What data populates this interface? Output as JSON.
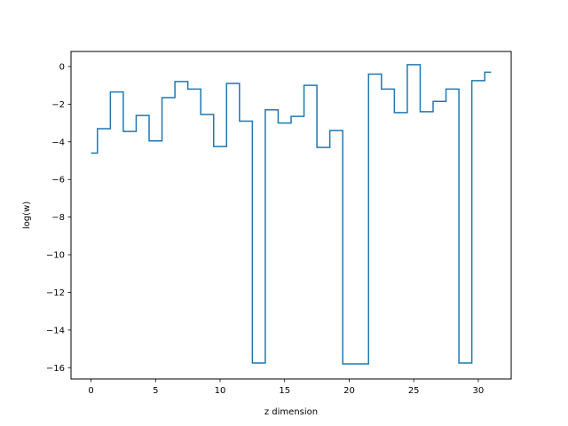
{
  "chart_data": {
    "type": "line",
    "drawstyle": "steps-mid",
    "title": "",
    "xlabel": "z dimension",
    "ylabel": "log(w)",
    "xlim": [
      -1.55,
      32.55
    ],
    "ylim": [
      -16.6,
      0.8
    ],
    "xticks": [
      0,
      5,
      10,
      15,
      20,
      25,
      30
    ],
    "yticks": [
      0,
      -2,
      -4,
      -6,
      -8,
      -10,
      -12,
      -14,
      -16
    ],
    "grid": false,
    "series": [
      {
        "color": "#1f77b4",
        "x": [
          0,
          1,
          2,
          3,
          4,
          5,
          6,
          7,
          8,
          9,
          10,
          11,
          12,
          13,
          14,
          15,
          16,
          17,
          18,
          19,
          20,
          21,
          22,
          23,
          24,
          25,
          26,
          27,
          28,
          29,
          30,
          31
        ],
        "y": [
          -4.6,
          -3.3,
          -1.35,
          -3.45,
          -2.6,
          -3.95,
          -1.65,
          -0.8,
          -1.2,
          -2.55,
          -4.25,
          -0.9,
          -2.9,
          -15.75,
          -2.3,
          -3.0,
          -2.65,
          -1.0,
          -4.3,
          -3.4,
          -15.8,
          -15.8,
          -0.4,
          -1.2,
          -2.45,
          0.1,
          -2.4,
          -1.85,
          -1.2,
          -15.75,
          -0.75,
          -0.3
        ]
      }
    ]
  }
}
